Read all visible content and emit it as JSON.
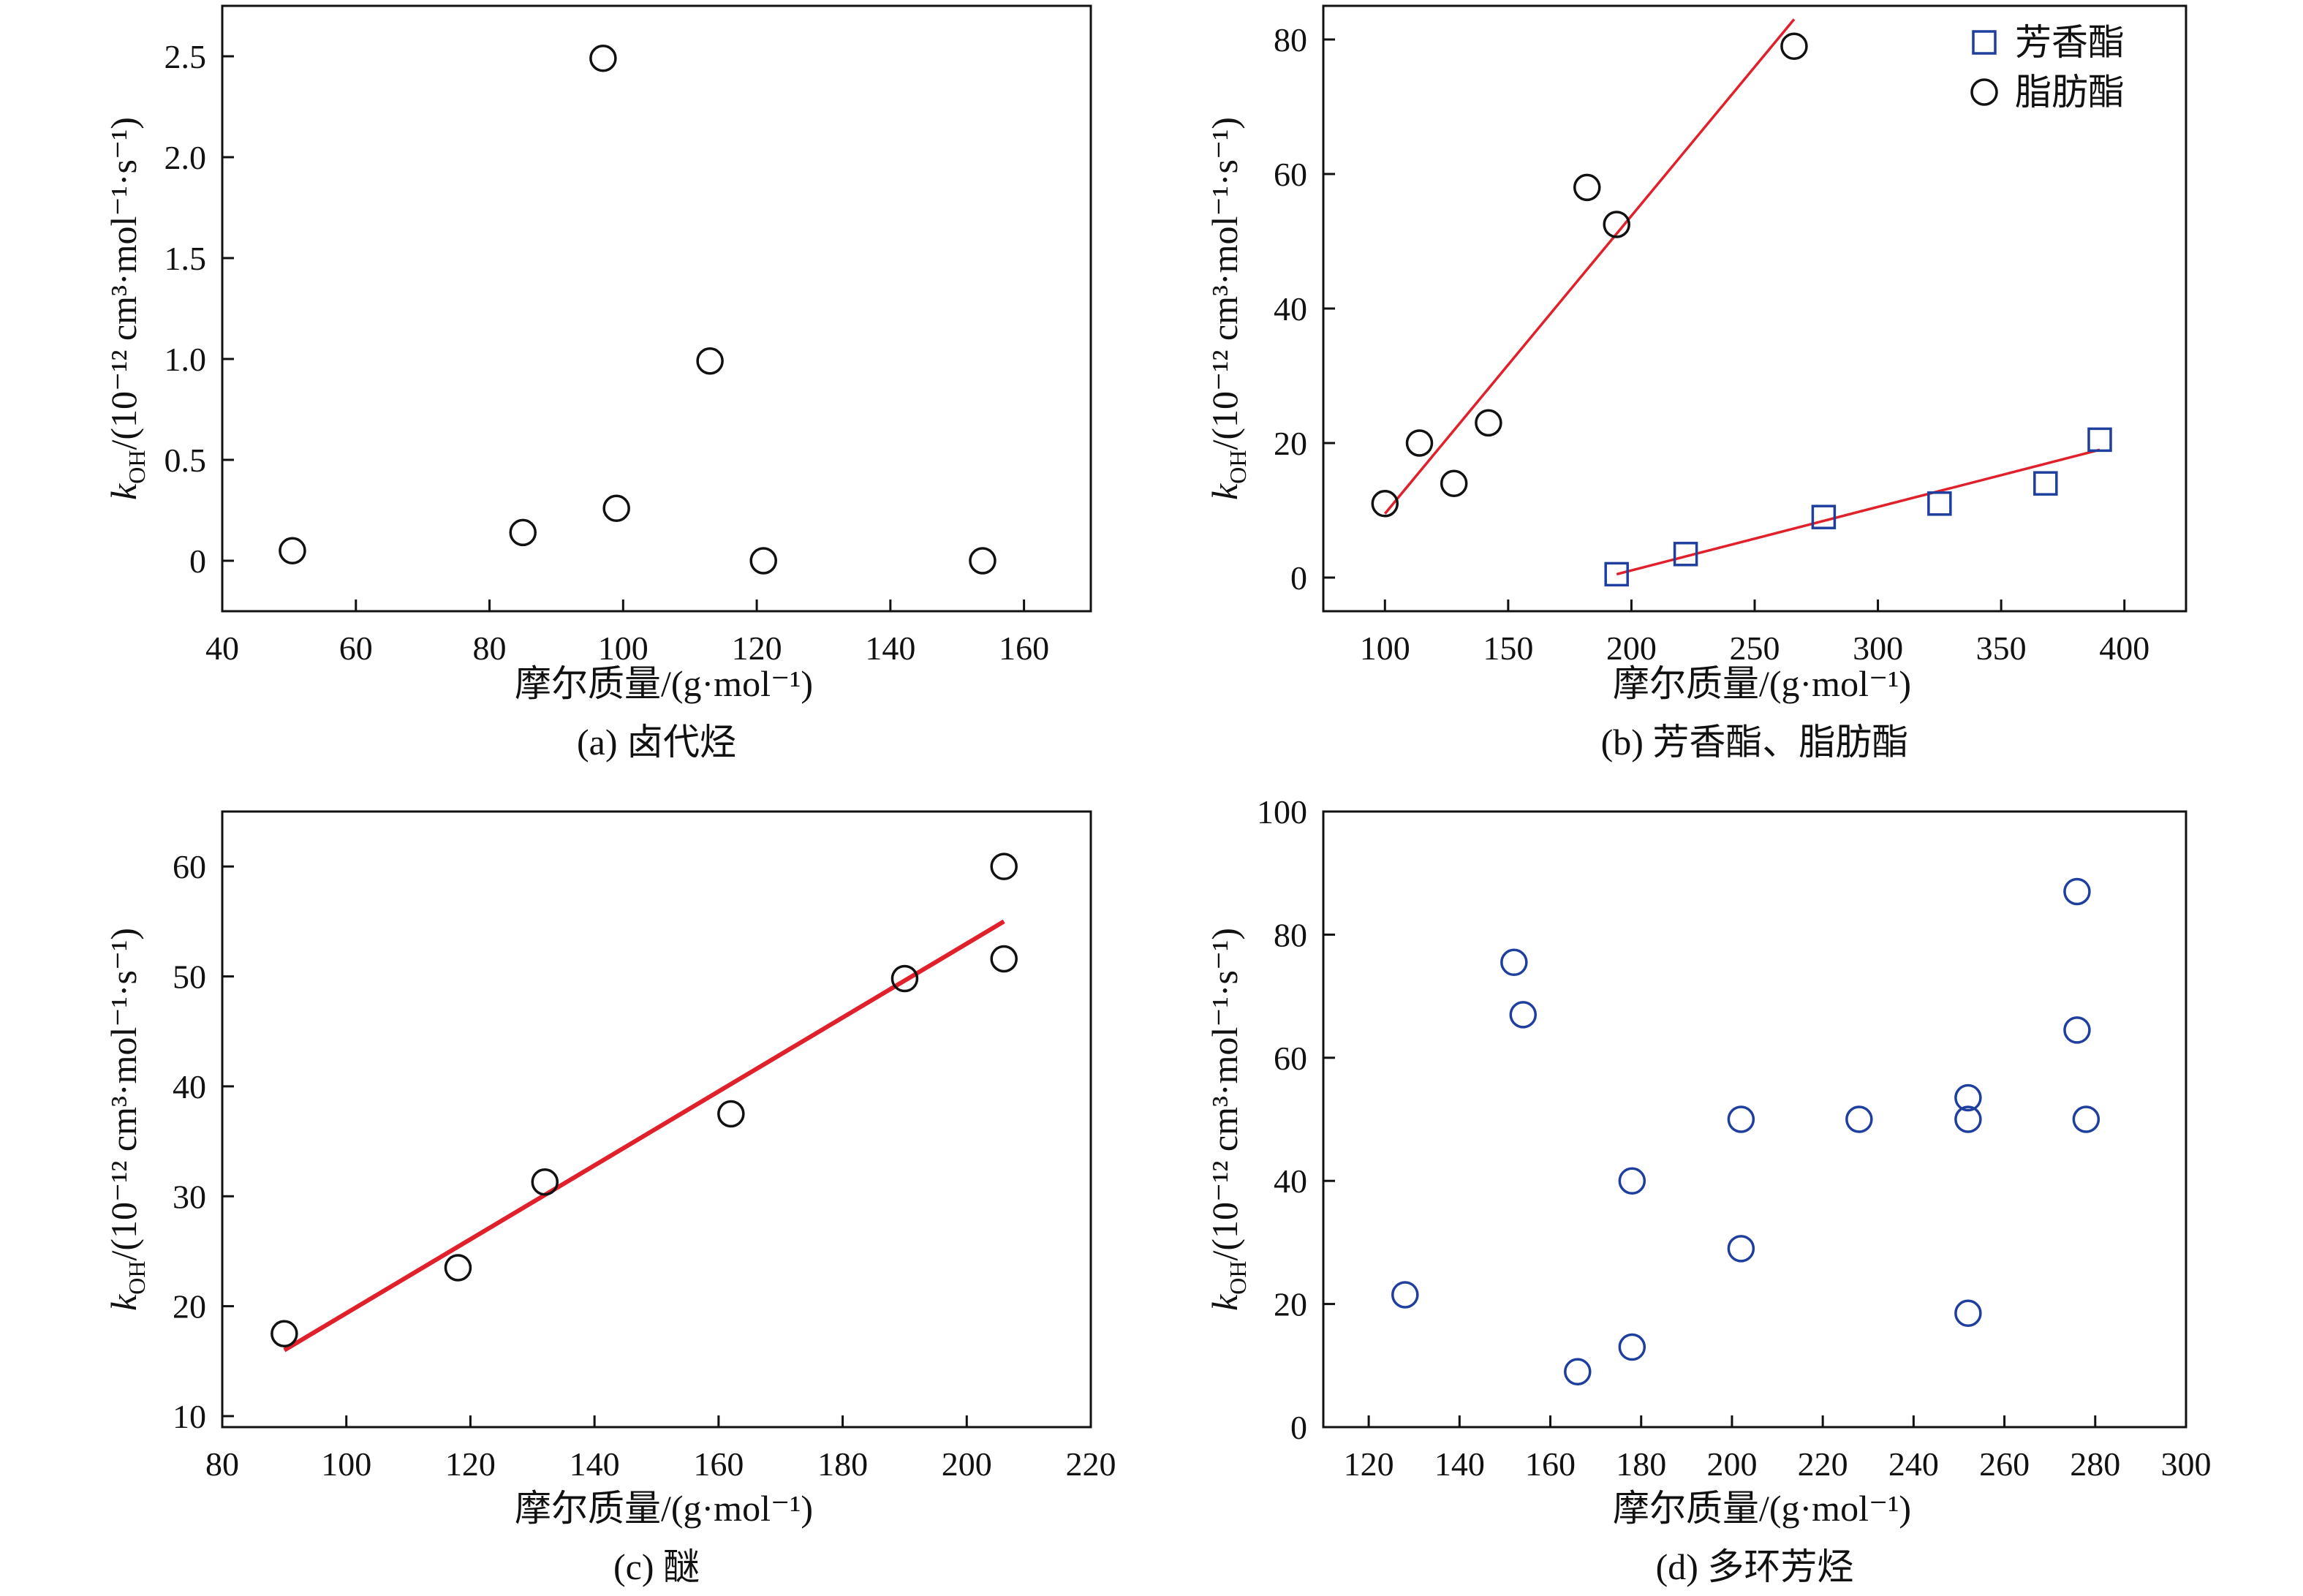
{
  "figure": {
    "colors": {
      "black_marker": "#111111",
      "blue_marker": "#1f3f9f",
      "fit_line": "#e0202a",
      "axis": "#111111"
    }
  },
  "chart_data": [
    {
      "id": "a",
      "type": "scatter",
      "caption": "(a) 卤代烃",
      "xlabel": "摩尔质量/(g·mol⁻¹)",
      "ylabel_main": "k",
      "ylabel_sub": "OH",
      "ylabel_rest": "/(10⁻¹² cm³·mol⁻¹·s⁻¹)",
      "xlim": [
        40,
        170
      ],
      "ylim": [
        -0.25,
        2.75
      ],
      "xticks": [
        40,
        60,
        80,
        100,
        120,
        140,
        160
      ],
      "yticks": [
        0,
        0.5,
        1.0,
        1.5,
        2.0,
        2.5
      ],
      "ytick_labels": [
        "0",
        "0.5",
        "1.0",
        "1.5",
        "2.0",
        "2.5"
      ],
      "series": [
        {
          "marker": "circle",
          "color": "#111111",
          "points": [
            [
              50.5,
              0.05
            ],
            [
              85,
              0.14
            ],
            [
              97,
              2.49
            ],
            [
              99,
              0.26
            ],
            [
              113,
              0.99
            ],
            [
              121,
              0.0
            ],
            [
              153.8,
              0.0
            ]
          ]
        }
      ],
      "lines": []
    },
    {
      "id": "b",
      "type": "scatter",
      "caption": "(b) 芳香酯、脂肪酯",
      "xlabel": "摩尔质量/(g·mol⁻¹)",
      "ylabel_main": "k",
      "ylabel_sub": "OH",
      "ylabel_rest": "/(10⁻¹² cm³·mol⁻¹·s⁻¹)",
      "xlim": [
        75,
        425
      ],
      "ylim": [
        -5,
        85
      ],
      "xticks": [
        100,
        150,
        200,
        250,
        300,
        350,
        400
      ],
      "yticks": [
        0,
        20,
        40,
        60,
        80
      ],
      "ytick_labels": [
        "0",
        "20",
        "40",
        "60",
        "80"
      ],
      "legend_position": "top-right",
      "series": [
        {
          "name": "芳香酯",
          "marker": "square",
          "color": "#1f3f9f",
          "points": [
            [
              194,
              0.5
            ],
            [
              222,
              3.5
            ],
            [
              278,
              9
            ],
            [
              325,
              11
            ],
            [
              368,
              14
            ],
            [
              390,
              20.5
            ]
          ]
        },
        {
          "name": "脂肪酯",
          "marker": "circle",
          "color": "#111111",
          "points": [
            [
              100,
              11
            ],
            [
              114,
              20
            ],
            [
              128,
              14
            ],
            [
              142,
              23
            ],
            [
              182,
              58
            ],
            [
              194,
              52.5
            ],
            [
              266,
              79
            ]
          ]
        }
      ],
      "lines": [
        {
          "from": [
            100,
            9.5
          ],
          "to": [
            266,
            83
          ]
        },
        {
          "from": [
            194,
            0.5
          ],
          "to": [
            390,
            19
          ]
        }
      ]
    },
    {
      "id": "c",
      "type": "scatter",
      "caption": "(c) 醚",
      "xlabel": "摩尔质量/(g·mol⁻¹)",
      "ylabel_main": "k",
      "ylabel_sub": "OH",
      "ylabel_rest": "/(10⁻¹² cm³·mol⁻¹·s⁻¹)",
      "xlim": [
        80,
        220
      ],
      "ylim": [
        9,
        65
      ],
      "xticks": [
        80,
        100,
        120,
        140,
        160,
        180,
        200,
        220
      ],
      "yticks": [
        10,
        20,
        30,
        40,
        50,
        60
      ],
      "ytick_labels": [
        "10",
        "20",
        "30",
        "40",
        "50",
        "60"
      ],
      "series": [
        {
          "marker": "circle",
          "color": "#111111",
          "points": [
            [
              90,
              17.5
            ],
            [
              118,
              23.5
            ],
            [
              132,
              31.3
            ],
            [
              162,
              37.5
            ],
            [
              190,
              49.8
            ],
            [
              206,
              60
            ],
            [
              206,
              51.6
            ]
          ]
        }
      ],
      "lines": [
        {
          "from": [
            90,
            16
          ],
          "to": [
            206,
            55
          ],
          "thick": true
        }
      ]
    },
    {
      "id": "d",
      "type": "scatter",
      "caption": "(d) 多环芳烃",
      "xlabel": "摩尔质量/(g·mol⁻¹)",
      "ylabel_main": "k",
      "ylabel_sub": "OH",
      "ylabel_rest": "/(10⁻¹² cm³·mol⁻¹·s⁻¹)",
      "xlim": [
        110,
        300
      ],
      "ylim": [
        0,
        100
      ],
      "xticks": [
        120,
        140,
        160,
        180,
        200,
        220,
        240,
        260,
        280,
        300
      ],
      "yticks": [
        0,
        20,
        40,
        60,
        80,
        100
      ],
      "ytick_labels": [
        "0",
        "20",
        "40",
        "60",
        "80",
        "100"
      ],
      "series": [
        {
          "marker": "circle",
          "color": "#1f3f9f",
          "points": [
            [
              128,
              21.5
            ],
            [
              152,
              75.5
            ],
            [
              154,
              67
            ],
            [
              166,
              9
            ],
            [
              178,
              40
            ],
            [
              178,
              13
            ],
            [
              202,
              50
            ],
            [
              202,
              29
            ],
            [
              228,
              50
            ],
            [
              252,
              53.5
            ],
            [
              252,
              50
            ],
            [
              252,
              18.5
            ],
            [
              276,
              87
            ],
            [
              276,
              64.5
            ],
            [
              278,
              50
            ]
          ]
        }
      ],
      "lines": []
    }
  ]
}
